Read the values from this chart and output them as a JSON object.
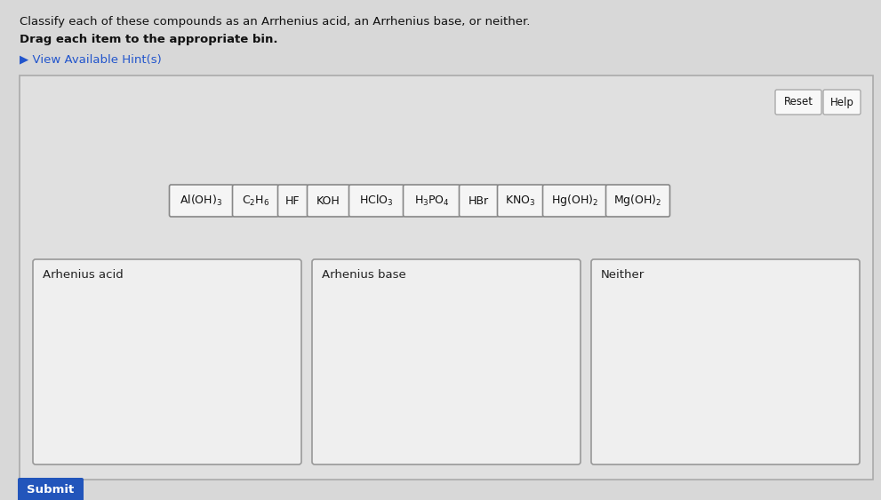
{
  "title_line1": "Classify each of these compounds as an Arrhenius acid, an Arrhenius base, or neither.",
  "title_line2": "Drag each item to the appropriate bin.",
  "hint_text": "▶ View Available Hint(s)",
  "compounds": [
    {
      "text": "Al(OH)$_3$"
    },
    {
      "text": "C$_2$H$_6$"
    },
    {
      "text": "HF"
    },
    {
      "text": "KOH"
    },
    {
      "text": "HClO$_3$"
    },
    {
      "text": "H$_3$PO$_4$"
    },
    {
      "text": "HBr"
    },
    {
      "text": "KNO$_3$"
    },
    {
      "text": "Hg(OH)$_2$"
    },
    {
      "text": "Mg(OH)$_2$"
    }
  ],
  "bins": [
    {
      "label": "Arhenius acid"
    },
    {
      "label": "Arhenius base"
    },
    {
      "label": "Neither"
    }
  ],
  "reset_text": "Reset",
  "help_text": "Help",
  "submit_text": "Submit",
  "outer_bg": "#d8d8d8",
  "panel_bg": "#e0e0e0",
  "panel_border": "#aaaaaa",
  "box_bg": "#f5f5f5",
  "box_border": "#999999",
  "bin_bg": "#f0f0f0",
  "bin_border": "#888888",
  "hint_color": "#2255cc",
  "submit_bg": "#2255bb",
  "submit_text_color": "#ffffff",
  "title_color": "#111111",
  "btn_bg": "#f8f8f8",
  "btn_border": "#aaaaaa"
}
